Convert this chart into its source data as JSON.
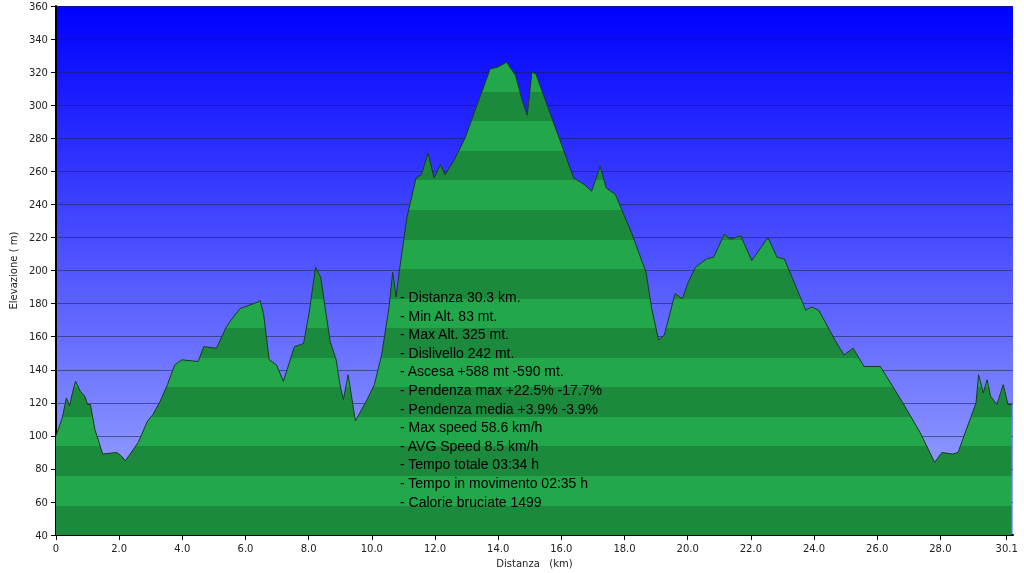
{
  "chart_data": {
    "type": "area",
    "xlabel": "Distanza   (km)",
    "ylabel": "Elevazione ( m)",
    "x": [
      0,
      0.2,
      0.33,
      0.43,
      0.52,
      0.62,
      0.77,
      0.91,
      1.0,
      1.09,
      1.23,
      1.48,
      1.92,
      2.06,
      2.2,
      2.6,
      2.9,
      3.07,
      3.3,
      3.53,
      3.76,
      3.99,
      4.5,
      4.68,
      5.08,
      5.37,
      5.54,
      5.83,
      6.4,
      6.46,
      6.57,
      6.75,
      6.98,
      7.2,
      7.55,
      7.72,
      7.84,
      8.01,
      8.22,
      8.38,
      8.68,
      8.87,
      8.99,
      9.1,
      9.25,
      9.48,
      9.85,
      10.08,
      10.31,
      10.54,
      10.66,
      10.77,
      10.88,
      11.11,
      11.4,
      11.57,
      11.78,
      11.97,
      12.17,
      12.32,
      12.61,
      12.95,
      13.29,
      13.75,
      13.98,
      14.27,
      14.55,
      14.76,
      14.92,
      15.07,
      15.19,
      15.59,
      16.05,
      16.39,
      16.73,
      16.96,
      17.23,
      17.42,
      17.71,
      18.22,
      18.68,
      18.86,
      19.08,
      19.26,
      19.6,
      19.83,
      20.02,
      20.25,
      20.59,
      20.82,
      21.16,
      21.34,
      21.68,
      22.03,
      22.54,
      22.83,
      23.06,
      23.74,
      23.92,
      24.15,
      24.66,
      24.95,
      25.24,
      25.58,
      26.1,
      26.78,
      27.36,
      27.82,
      28.05,
      28.39,
      28.56,
      28.96,
      29.13,
      29.21,
      29.36,
      29.48,
      29.59,
      29.79,
      29.99,
      30.14,
      30.26
    ],
    "series": [
      {
        "color": "#22a84a",
        "values": [
          100,
          111,
          123,
          118,
          126,
          133,
          127,
          124,
          119,
          119,
          104,
          89,
          90,
          88,
          85,
          96,
          109,
          113,
          121,
          131,
          143,
          146,
          145,
          154,
          153,
          165,
          170,
          177,
          181,
          182,
          174,
          146,
          143,
          133,
          154,
          155,
          156,
          174,
          202,
          196,
          157,
          146,
          131,
          122,
          137,
          109,
          122,
          131,
          149,
          177,
          199,
          184,
          201,
          232,
          256,
          258,
          271,
          256,
          264,
          258,
          267,
          280,
          298,
          322,
          323,
          326,
          318,
          303,
          294,
          320,
          319,
          298,
          274,
          256,
          252,
          248,
          263,
          250,
          246,
          223,
          199,
          177,
          158,
          161,
          186,
          183,
          193,
          202,
          207,
          208,
          222,
          219,
          221,
          206,
          220,
          208,
          207,
          176,
          178,
          176,
          158,
          149,
          153,
          142,
          142,
          121,
          102,
          84,
          90,
          89,
          90,
          111,
          120,
          137,
          126,
          134,
          124,
          119,
          131,
          119,
          119
        ]
      }
    ],
    "xlim": [
      0,
      30.3
    ],
    "xticks": [
      0,
      {
        "value": 2,
        "label": "2.0"
      },
      {
        "value": 4,
        "label": "4.0"
      },
      {
        "value": 6,
        "label": "6.0"
      },
      {
        "value": 8,
        "label": "8.0"
      },
      {
        "value": 10,
        "label": "10.0"
      },
      {
        "value": 12,
        "label": "12.0"
      },
      {
        "value": 14,
        "label": "14.0"
      },
      {
        "value": 16,
        "label": "16.0"
      },
      {
        "value": 18,
        "label": "18.0"
      },
      {
        "value": 20,
        "label": "20.0"
      },
      {
        "value": 22,
        "label": "22.0"
      },
      {
        "value": 24,
        "label": "24.0"
      },
      {
        "value": 26,
        "label": "26.0"
      },
      {
        "value": 28,
        "label": "28.0"
      },
      30.1
    ],
    "ylim": [
      40,
      360
    ],
    "yticks": [
      40,
      60,
      80,
      100,
      120,
      140,
      160,
      180,
      200,
      220,
      240,
      260,
      280,
      300,
      320,
      340,
      360
    ],
    "grid": "y",
    "annotations": [
      "- Distanza 30.3 km.",
      "- Min Alt. 83 mt.",
      "- Max Alt. 325 mt.",
      "- Dislivello 242 mt.",
      "- Ascesa +588 mt -590 mt.",
      "- Pendenza max +22.5% -17.7%",
      "- Pendenza media +3.9% -3.9%",
      "- Max speed 58.6 km/h",
      "- AVG Speed 8.5 km/h",
      "- Tempo totale 03:34 h",
      "- Tempo in movimento 02:35 h",
      "- Calorie bruciate 1499"
    ]
  }
}
